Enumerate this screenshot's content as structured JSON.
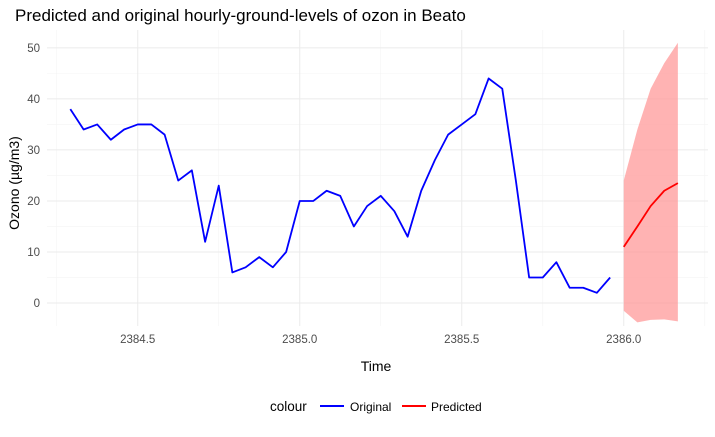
{
  "chart_data": {
    "type": "line",
    "title": "Predicted and original hourly-ground-levels of ozon in Beato",
    "xlabel": "Time",
    "ylabel": "Ozono (µg/m3)",
    "xlim": [
      2384.22,
      2386.26
    ],
    "ylim": [
      -4.5,
      53.5
    ],
    "x_ticks": [
      2384.5,
      2385.0,
      2385.5,
      2386.0
    ],
    "x_tick_labels": [
      "2384.5",
      "2385.0",
      "2385.5",
      "2386.0"
    ],
    "y_ticks": [
      0,
      10,
      20,
      30,
      40,
      50
    ],
    "y_tick_labels": [
      "0",
      "10",
      "20",
      "30",
      "40",
      "50"
    ],
    "grid": true,
    "legend": {
      "title": "colour",
      "position": "bottom"
    },
    "series": [
      {
        "name": "Original",
        "color": "#0000ff",
        "x": [
          2384.292,
          2384.333,
          2384.375,
          2384.417,
          2384.458,
          2384.5,
          2384.542,
          2384.583,
          2384.625,
          2384.667,
          2384.708,
          2384.75,
          2384.792,
          2384.833,
          2384.875,
          2384.917,
          2384.958,
          2385.0,
          2385.042,
          2385.083,
          2385.125,
          2385.167,
          2385.208,
          2385.25,
          2385.292,
          2385.333,
          2385.375,
          2385.417,
          2385.458,
          2385.5,
          2385.542,
          2385.583,
          2385.625,
          2385.667,
          2385.708,
          2385.75,
          2385.792,
          2385.833,
          2385.875,
          2385.917,
          2385.958
        ],
        "values": [
          38,
          34,
          35,
          32,
          34,
          35,
          35,
          33,
          24,
          26,
          12,
          23,
          6,
          7,
          9,
          7,
          10,
          20,
          20,
          22,
          21,
          15,
          19,
          21,
          18,
          13,
          22,
          28,
          33,
          35,
          37,
          44,
          42,
          24,
          5,
          5,
          8,
          3,
          3,
          2,
          5
        ]
      },
      {
        "name": "Predicted",
        "color": "#ff0000",
        "x": [
          2386.0,
          2386.042,
          2386.083,
          2386.125,
          2386.167
        ],
        "values": [
          11,
          15,
          19,
          22,
          23.5
        ],
        "lower": [
          -1.5,
          -3.8,
          -3.3,
          -3.2,
          -3.6
        ],
        "upper": [
          24,
          34,
          42,
          47,
          51
        ],
        "band_color": "#ff9999"
      }
    ]
  }
}
